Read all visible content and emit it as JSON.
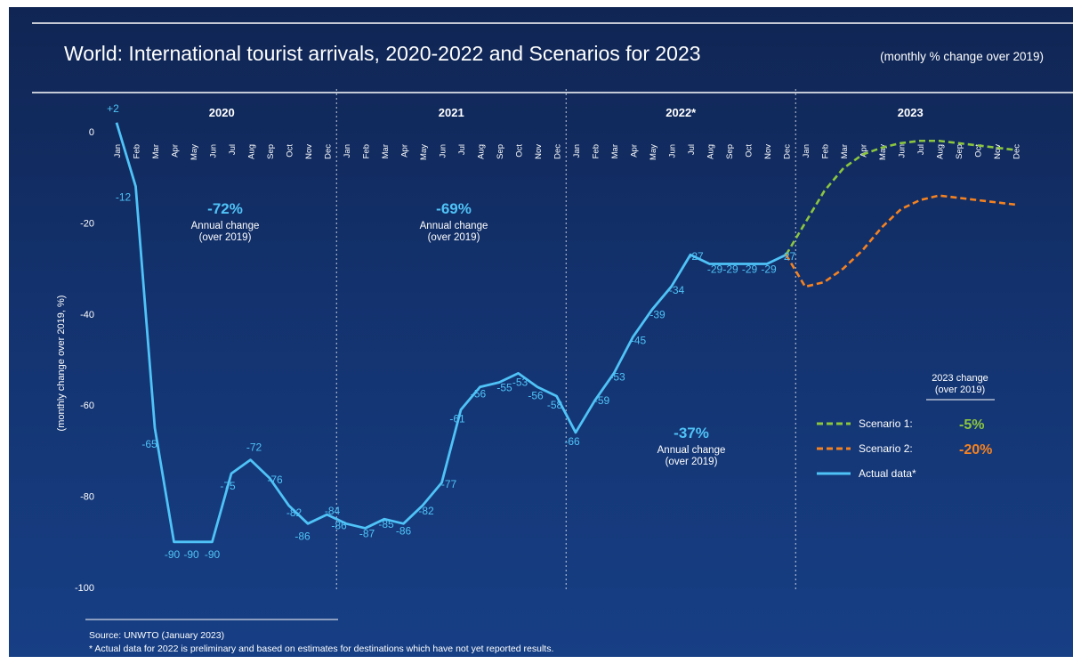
{
  "chart_data": {
    "type": "line",
    "title": "World: International tourist arrivals, 2020-2022 and Scenarios for 2023",
    "subtitle": "(monthly % change over 2019)",
    "ylabel": "(monthly change over 2019, %)",
    "ylim": [
      -100,
      2
    ],
    "yticks": [
      "0",
      "-20",
      "-40",
      "-60",
      "-80",
      "-100"
    ],
    "ytick_values": [
      0,
      -20,
      -40,
      -60,
      -80,
      -100
    ],
    "years": [
      "2020",
      "2021",
      "2022*",
      "2023"
    ],
    "months": [
      "Jan",
      "Feb",
      "Mar",
      "Apr",
      "May",
      "Jun",
      "Jul",
      "Aug",
      "Sep",
      "Oct",
      "Nov",
      "Dec"
    ],
    "series": [
      {
        "name": "Actual data*",
        "color": "#4fc3f7",
        "values": [
          2,
          -12,
          -65,
          -90,
          -90,
          -90,
          -75,
          -72,
          -76,
          -82,
          -86,
          -84,
          -86,
          -87,
          -85,
          -86,
          -82,
          -77,
          -61,
          -56,
          -55,
          -53,
          -56,
          -58,
          -66,
          -59,
          -53,
          -45,
          -39,
          -34,
          -27,
          -29,
          -29,
          -29,
          -29,
          -27
        ],
        "labels": [
          "+2",
          "-12",
          "-65",
          "-90",
          "-90",
          "-90",
          "-75",
          "-72",
          "-76",
          "-82",
          "-86",
          "-84",
          "-86",
          "-87",
          "-85",
          "-86",
          "-82",
          "-77",
          "-61",
          "-56",
          "-55",
          "-53",
          "-56",
          "-58",
          "-66",
          "-59",
          "-53",
          "-45",
          "-39",
          "-34",
          "-27",
          "-29",
          "-29",
          "-29",
          "-29",
          "-27"
        ]
      },
      {
        "name": "Scenario 1:",
        "color": "#8cc63f",
        "dashed": true,
        "values": [
          -20,
          -13,
          -8,
          -5,
          -3.5,
          -2.5,
          -2,
          -2,
          -2.5,
          -3,
          -3.5,
          -4
        ]
      },
      {
        "name": "Scenario 2:",
        "color": "#f58220",
        "dashed": true,
        "values": [
          -34,
          -33,
          -30,
          -26,
          -21,
          -17,
          -15,
          -14,
          -14.5,
          -15,
          -15.5,
          -16
        ]
      }
    ],
    "annual_changes": [
      {
        "value": "-72%",
        "label1": "Annual change",
        "label2": "(over 2019)"
      },
      {
        "value": "-69%",
        "label1": "Annual change",
        "label2": "(over 2019)"
      },
      {
        "value": "-37%",
        "label1": "Annual change",
        "label2": "(over 2019)"
      }
    ],
    "legend": {
      "header1": "2023 change",
      "header2": "(over 2019)",
      "items": [
        {
          "label": "Scenario 1:",
          "value": "-5%",
          "color": "#8cc63f",
          "dashed": true
        },
        {
          "label": "Scenario 2:",
          "value": "-20%",
          "color": "#f58220",
          "dashed": true
        },
        {
          "label": "Actual data*",
          "value": "",
          "color": "#4fc3f7",
          "dashed": false
        }
      ]
    },
    "source": "Source: UNWTO (January 2023)",
    "footnote": "* Actual data for 2022 is preliminary and based on estimates for destinations which have not yet reported results."
  }
}
